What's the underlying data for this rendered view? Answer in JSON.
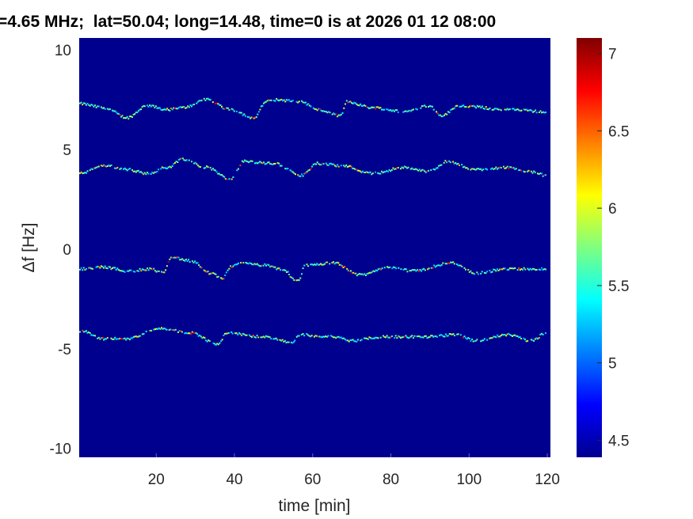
{
  "chart_data": {
    "type": "heatmap",
    "title": "=4.65 MHz;  lat=50.04; long=14.48, time=0 is at 2026 01 12 08:00",
    "xlabel": "time [min]",
    "ylabel": "Δf [Hz]",
    "xlim": [
      0.3,
      120.8
    ],
    "ylim": [
      -10.45,
      10.6
    ],
    "xticks": [
      "20",
      "40",
      "60",
      "80",
      "100",
      "120"
    ],
    "yticks": [
      "-10",
      "-5",
      "0",
      "5",
      "10"
    ],
    "colormap": "jet",
    "background_color": "#00008f",
    "colorbar": {
      "clim": [
        4.39,
        7.1
      ],
      "ticks": [
        "4.5",
        "5",
        "5.5",
        "6",
        "6.5",
        "7"
      ],
      "placement": "right"
    },
    "grid": false,
    "traces": [
      {
        "t": [
          0.3,
          6.4,
          12.4,
          17.5,
          22.6,
          26.6,
          32.7,
          38.8,
          44.8,
          47.9,
          49.9,
          57.0,
          61.0,
          67.1,
          68.5,
          75.2,
          83.3,
          89.4,
          92.8,
          97.4,
          109.6,
          119.7
        ],
        "df": [
          7.3,
          7.1,
          6.6,
          7.2,
          7.0,
          7.1,
          7.5,
          7.0,
          6.6,
          7.4,
          7.5,
          7.4,
          7.0,
          6.7,
          7.4,
          7.1,
          6.9,
          7.2,
          6.7,
          7.2,
          7.0,
          6.9
        ]
      },
      {
        "t": [
          0.3,
          6.4,
          12.4,
          17.5,
          22.6,
          26.6,
          32.7,
          38.8,
          40.8,
          41.8,
          49.9,
          57.0,
          61.0,
          67.1,
          75.2,
          83.3,
          89.4,
          94.4,
          101.5,
          109.6,
          114.7,
          119.7
        ],
        "df": [
          3.8,
          4.2,
          4.0,
          3.8,
          4.1,
          4.5,
          4.1,
          3.5,
          4.0,
          4.4,
          4.3,
          3.7,
          4.3,
          4.2,
          3.8,
          4.1,
          3.9,
          4.4,
          4.0,
          4.1,
          3.9,
          3.7
        ]
      },
      {
        "t": [
          0.3,
          6.4,
          12.4,
          18.5,
          21.5,
          23.6,
          28.7,
          33.7,
          36.7,
          38.8,
          40.8,
          46.9,
          51.9,
          56.0,
          58.0,
          65.1,
          72.1,
          79.2,
          85.3,
          95.4,
          101.5,
          109.6,
          119.7
        ],
        "df": [
          -1.0,
          -0.9,
          -1.1,
          -1.0,
          -1.2,
          -0.4,
          -0.6,
          -1.2,
          -1.5,
          -0.9,
          -0.7,
          -0.8,
          -1.0,
          -1.6,
          -0.8,
          -0.7,
          -1.3,
          -0.9,
          -1.1,
          -0.7,
          -1.2,
          -1.0,
          -1.0
        ]
      },
      {
        "t": [
          0.3,
          6.4,
          12.4,
          20.5,
          28.7,
          35.7,
          37.7,
          46.9,
          55.0,
          56.0,
          65.1,
          70.1,
          77.2,
          89.4,
          96.4,
          101.5,
          109.6,
          115.7,
          119.7
        ],
        "df": [
          -4.1,
          -4.5,
          -4.5,
          -4.0,
          -4.2,
          -4.8,
          -4.2,
          -4.4,
          -4.7,
          -4.3,
          -4.4,
          -4.6,
          -4.4,
          -4.4,
          -4.3,
          -4.6,
          -4.3,
          -4.6,
          -4.2
        ]
      }
    ]
  }
}
